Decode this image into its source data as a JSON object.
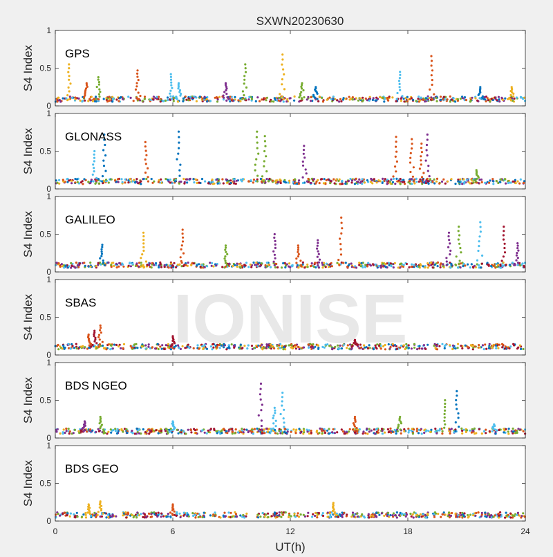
{
  "chart_data": {
    "type": "scatter",
    "title": "SXWN20230630",
    "xlabel": "UT(h)",
    "ylabel": "S4 Index",
    "watermark": "IONISE",
    "xlim": [
      0,
      24
    ],
    "xticks": [
      0,
      6,
      12,
      18,
      24
    ],
    "ylim": [
      0,
      1
    ],
    "yticks": [
      0,
      0.5,
      1
    ],
    "ytick_labels": [
      "0",
      "0.5",
      "1"
    ],
    "grid": false,
    "legend": "none",
    "series_colors": [
      "#0072bd",
      "#d95319",
      "#edb120",
      "#7e2f8e",
      "#77ac30",
      "#4dbeee",
      "#a2142f"
    ],
    "panels": [
      {
        "label": "GPS",
        "baseline": 0.09,
        "spikes": [
          {
            "x": 0.7,
            "y": 0.55,
            "c": 2
          },
          {
            "x": 1.6,
            "y": 0.3,
            "c": 1
          },
          {
            "x": 2.2,
            "y": 0.38,
            "c": 4
          },
          {
            "x": 4.2,
            "y": 0.47,
            "c": 1
          },
          {
            "x": 5.9,
            "y": 0.42,
            "c": 5
          },
          {
            "x": 6.3,
            "y": 0.3,
            "c": 5
          },
          {
            "x": 8.7,
            "y": 0.3,
            "c": 3
          },
          {
            "x": 9.7,
            "y": 0.55,
            "c": 4
          },
          {
            "x": 11.6,
            "y": 0.68,
            "c": 2
          },
          {
            "x": 12.6,
            "y": 0.3,
            "c": 4
          },
          {
            "x": 13.3,
            "y": 0.25,
            "c": 0
          },
          {
            "x": 17.6,
            "y": 0.45,
            "c": 5
          },
          {
            "x": 19.2,
            "y": 0.66,
            "c": 1
          },
          {
            "x": 21.7,
            "y": 0.25,
            "c": 0
          },
          {
            "x": 23.3,
            "y": 0.25,
            "c": 2
          }
        ]
      },
      {
        "label": "GLONASS",
        "baseline": 0.1,
        "spikes": [
          {
            "x": 2.5,
            "y": 0.72,
            "c": 0
          },
          {
            "x": 2.0,
            "y": 0.5,
            "c": 5
          },
          {
            "x": 4.6,
            "y": 0.62,
            "c": 1
          },
          {
            "x": 6.3,
            "y": 0.76,
            "c": 0
          },
          {
            "x": 10.3,
            "y": 0.76,
            "c": 4
          },
          {
            "x": 10.7,
            "y": 0.7,
            "c": 4
          },
          {
            "x": 12.7,
            "y": 0.57,
            "c": 3
          },
          {
            "x": 17.4,
            "y": 0.69,
            "c": 1
          },
          {
            "x": 18.2,
            "y": 0.66,
            "c": 1
          },
          {
            "x": 19.0,
            "y": 0.72,
            "c": 3
          },
          {
            "x": 18.7,
            "y": 0.6,
            "c": 1
          },
          {
            "x": 21.5,
            "y": 0.25,
            "c": 4
          }
        ]
      },
      {
        "label": "GALILEO",
        "baseline": 0.09,
        "spikes": [
          {
            "x": 2.4,
            "y": 0.36,
            "c": 0
          },
          {
            "x": 4.5,
            "y": 0.52,
            "c": 2
          },
          {
            "x": 6.5,
            "y": 0.56,
            "c": 1
          },
          {
            "x": 8.7,
            "y": 0.35,
            "c": 4
          },
          {
            "x": 11.2,
            "y": 0.5,
            "c": 3
          },
          {
            "x": 12.4,
            "y": 0.35,
            "c": 1
          },
          {
            "x": 13.4,
            "y": 0.42,
            "c": 3
          },
          {
            "x": 14.6,
            "y": 0.72,
            "c": 1
          },
          {
            "x": 20.1,
            "y": 0.52,
            "c": 3
          },
          {
            "x": 20.6,
            "y": 0.6,
            "c": 4
          },
          {
            "x": 21.7,
            "y": 0.66,
            "c": 5
          },
          {
            "x": 22.9,
            "y": 0.6,
            "c": 6
          },
          {
            "x": 23.6,
            "y": 0.38,
            "c": 3
          }
        ]
      },
      {
        "label": "SBAS",
        "baseline": 0.11,
        "spikes": [
          {
            "x": 1.7,
            "y": 0.27,
            "c": 1
          },
          {
            "x": 2.0,
            "y": 0.32,
            "c": 6
          },
          {
            "x": 2.3,
            "y": 0.39,
            "c": 1
          },
          {
            "x": 6.0,
            "y": 0.25,
            "c": 6
          },
          {
            "x": 15.3,
            "y": 0.2,
            "c": 6
          }
        ]
      },
      {
        "label": "BDS NGEO",
        "baseline": 0.09,
        "spikes": [
          {
            "x": 1.5,
            "y": 0.22,
            "c": 3
          },
          {
            "x": 2.3,
            "y": 0.28,
            "c": 4
          },
          {
            "x": 6.0,
            "y": 0.22,
            "c": 5
          },
          {
            "x": 10.5,
            "y": 0.72,
            "c": 3
          },
          {
            "x": 11.2,
            "y": 0.4,
            "c": 5
          },
          {
            "x": 11.6,
            "y": 0.6,
            "c": 5
          },
          {
            "x": 15.3,
            "y": 0.28,
            "c": 1
          },
          {
            "x": 17.6,
            "y": 0.28,
            "c": 4
          },
          {
            "x": 19.9,
            "y": 0.5,
            "c": 4
          },
          {
            "x": 20.5,
            "y": 0.62,
            "c": 0
          },
          {
            "x": 22.4,
            "y": 0.18,
            "c": 5
          }
        ]
      },
      {
        "label": "BDS GEO",
        "baseline": 0.08,
        "spikes": [
          {
            "x": 1.7,
            "y": 0.22,
            "c": 2
          },
          {
            "x": 2.3,
            "y": 0.26,
            "c": 2
          },
          {
            "x": 6.0,
            "y": 0.22,
            "c": 1
          },
          {
            "x": 14.2,
            "y": 0.24,
            "c": 2
          }
        ]
      }
    ]
  }
}
